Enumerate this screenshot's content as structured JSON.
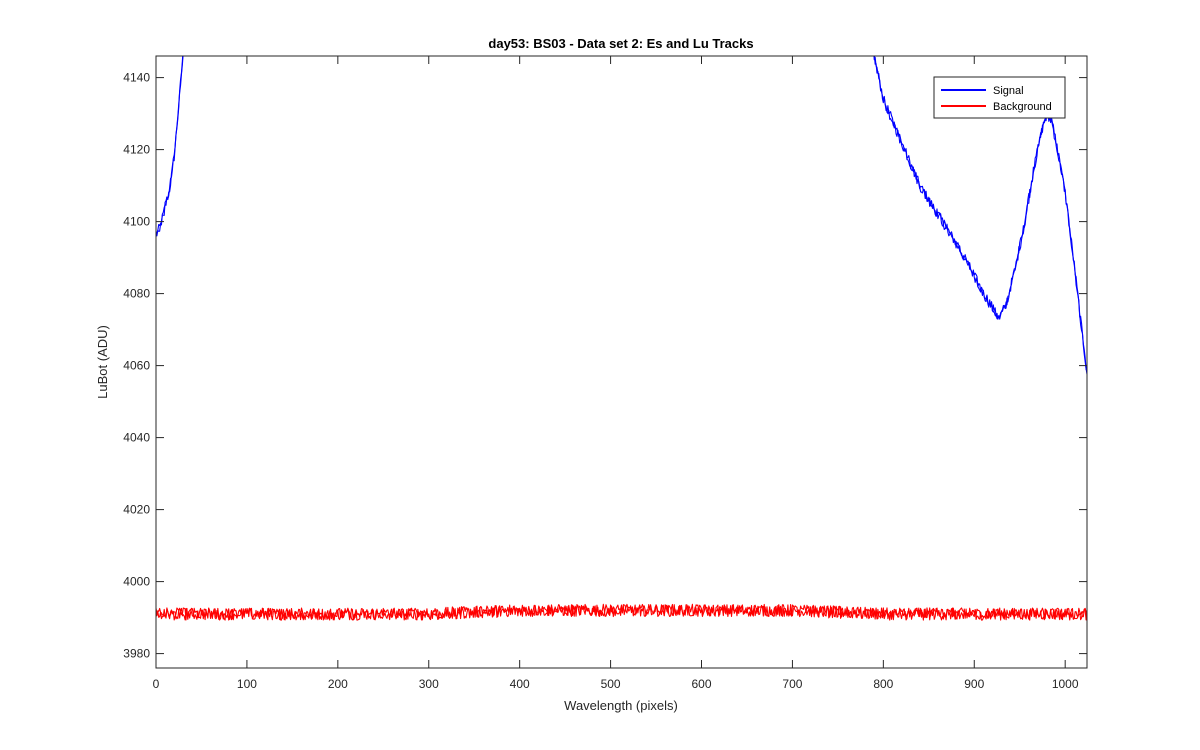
{
  "chart_data": {
    "type": "line",
    "title": "day53: BS03 - Data set 2: Es and Lu Tracks",
    "xlabel": "Wavelength (pixels)",
    "ylabel": "LuBot (ADU)",
    "xlim": [
      0,
      1024
    ],
    "ylim": [
      3976,
      4146
    ],
    "xticks": [
      0,
      100,
      200,
      300,
      400,
      500,
      600,
      700,
      800,
      900,
      1000
    ],
    "yticks": [
      3980,
      4000,
      4020,
      4040,
      4060,
      4080,
      4100,
      4120,
      4140
    ],
    "grid": false,
    "legend": {
      "placement": "top-right",
      "entries": [
        "Signal",
        "Background"
      ]
    },
    "series": [
      {
        "name": "Signal",
        "color": "#0000ff",
        "x": [
          0,
          5,
          10,
          15,
          20,
          25,
          30,
          35,
          780,
          790,
          800,
          820,
          840,
          860,
          880,
          900,
          910,
          920,
          927,
          935,
          945,
          955,
          965,
          975,
          980,
          985,
          990,
          1000,
          1010,
          1020,
          1024
        ],
        "y": [
          4096,
          4099,
          4104,
          4109,
          4118,
          4132,
          4148,
          4165,
          4165,
          4146,
          4134,
          4122,
          4110,
          4102,
          4094,
          4085,
          4080,
          4076,
          4073,
          4077,
          4087,
          4099,
          4114,
          4126,
          4130,
          4128,
          4122,
          4108,
          4088,
          4066,
          4058
        ]
      },
      {
        "name": "Background",
        "color": "#ff0000",
        "x": [
          0,
          100,
          200,
          300,
          400,
          500,
          600,
          700,
          800,
          900,
          1000,
          1024
        ],
        "y": [
          3991,
          3991,
          3991,
          3991,
          3992,
          3992,
          3992,
          3992,
          3991,
          3991,
          3991,
          3991
        ]
      }
    ]
  }
}
